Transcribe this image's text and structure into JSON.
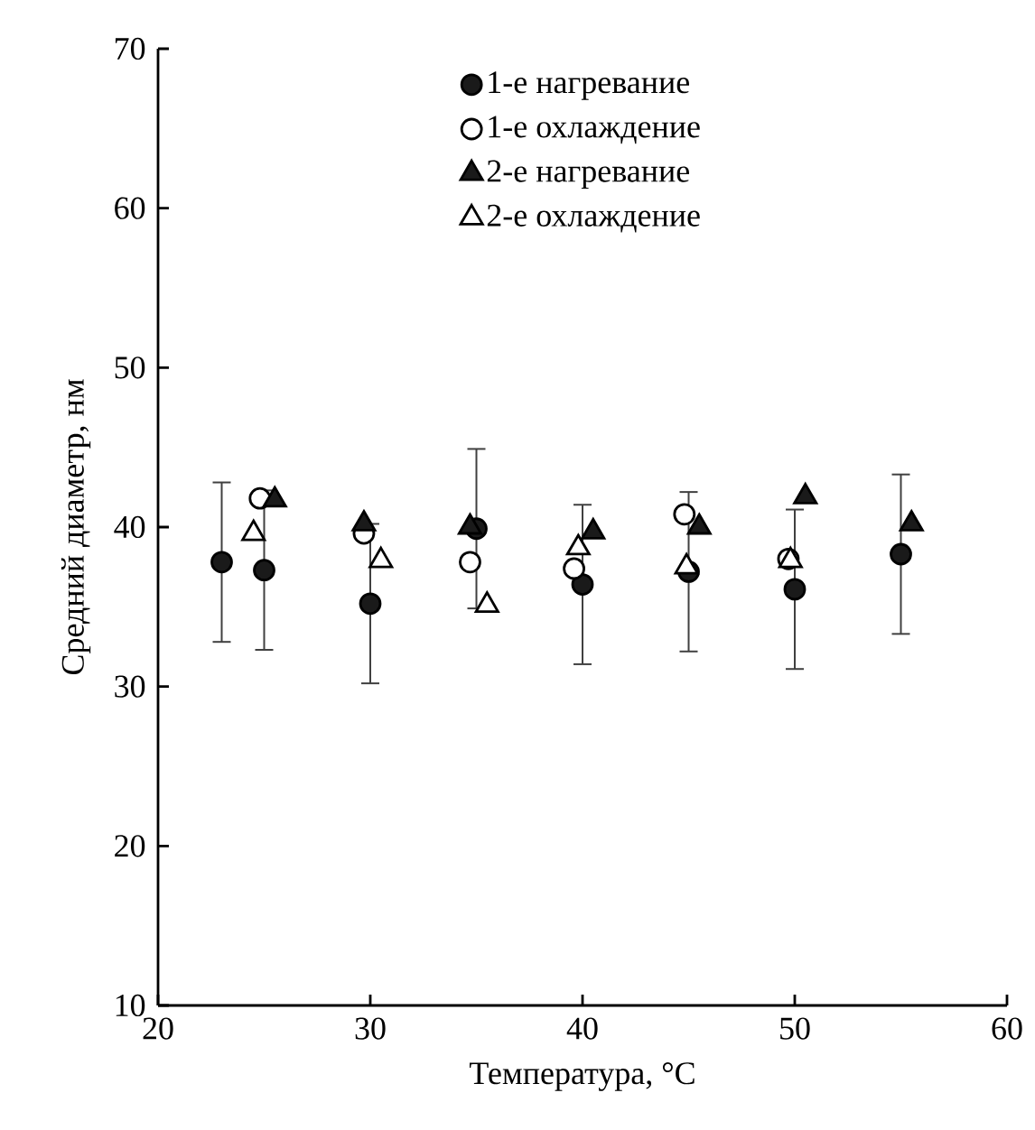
{
  "chart_data": {
    "type": "scatter",
    "xlabel": "Температура, °C",
    "ylabel": "Средний диаметр, нм",
    "xlim": [
      20,
      60
    ],
    "xticks": [
      20,
      30,
      40,
      50,
      60
    ],
    "ylim": [
      10,
      70
    ],
    "yticks": [
      10,
      20,
      30,
      40,
      50,
      60,
      70
    ],
    "legend": "top",
    "grid": false,
    "series": [
      {
        "name": "1-е нагревание",
        "marker": "circle",
        "color": "#1a1a1a",
        "x": [
          23.0,
          25.0,
          30.0,
          35.0,
          40.0,
          45.0,
          50.0,
          55.0
        ],
        "values": [
          37.8,
          37.3,
          35.2,
          39.9,
          36.4,
          37.2,
          36.1,
          38.3
        ],
        "errors": [
          5,
          5,
          5,
          5,
          5,
          5,
          5,
          5
        ]
      },
      {
        "name": "1-е охлаждение",
        "marker": "circle",
        "color": "#ffffff",
        "x": [
          24.8,
          29.7,
          34.7,
          39.6,
          44.8,
          49.7
        ],
        "values": [
          41.8,
          39.6,
          37.8,
          37.4,
          40.8,
          38.0
        ]
      },
      {
        "name": "2-е нагревание",
        "marker": "triangle",
        "color": "#1a1a1a",
        "x": [
          25.5,
          29.7,
          34.7,
          40.5,
          45.5,
          50.5,
          55.5
        ],
        "values": [
          41.7,
          40.2,
          40.0,
          39.7,
          40.0,
          41.9,
          40.2
        ]
      },
      {
        "name": "2-е охлаждение",
        "marker": "triangle",
        "color": "#ffffff",
        "x": [
          24.5,
          30.5,
          35.5,
          39.8,
          44.9,
          49.8
        ],
        "values": [
          39.6,
          37.9,
          35.1,
          38.7,
          37.5,
          37.9
        ]
      }
    ]
  }
}
